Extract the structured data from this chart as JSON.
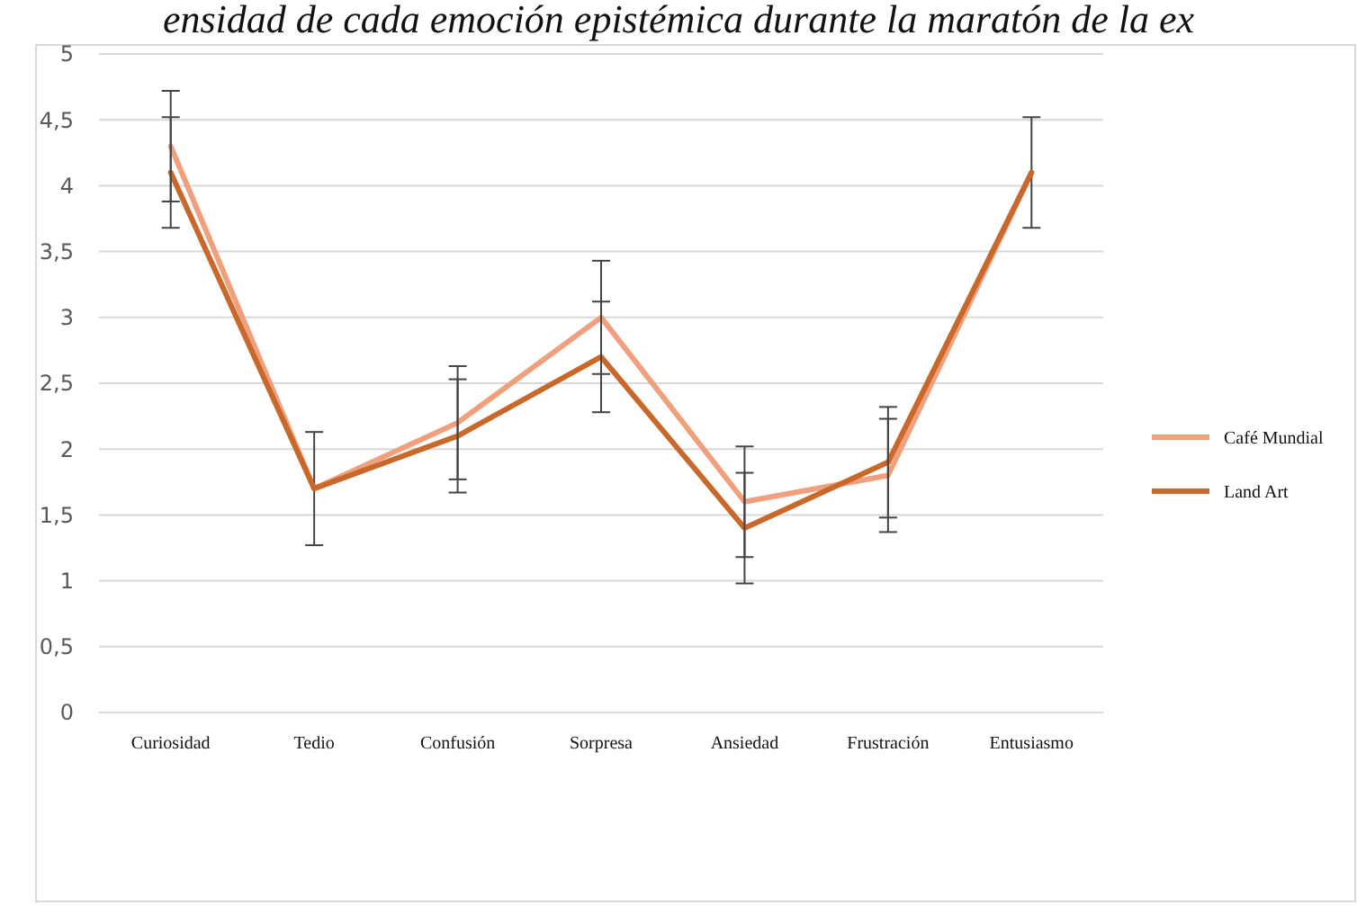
{
  "chart_data": {
    "type": "line",
    "title": "ensidad de cada emoción epistémica durante la maratón de la ex",
    "categories": [
      "Curiosidad",
      "Tedio",
      "Confusión",
      "Sorpresa",
      "Ansiedad",
      "Frustración",
      "Entusiasmo"
    ],
    "series": [
      {
        "name": "Café Mundial",
        "color": "#f0a07c",
        "values": [
          4.3,
          1.7,
          2.2,
          3.0,
          1.6,
          1.8,
          4.1
        ],
        "errors": [
          0.42,
          0.43,
          0.43,
          0.43,
          0.42,
          0.43,
          0.42
        ]
      },
      {
        "name": "Land Art",
        "color": "#c8682a",
        "values": [
          4.1,
          1.7,
          2.1,
          2.7,
          1.4,
          1.9,
          4.1
        ],
        "errors": [
          0.42,
          null,
          0.43,
          0.42,
          0.42,
          0.42,
          null
        ]
      }
    ],
    "ylim": [
      0,
      5
    ],
    "yticks": [
      0,
      {
        "value": 0.5,
        "label": "0,5"
      },
      1,
      {
        "value": 1.5,
        "label": "1,5"
      },
      2,
      {
        "value": 2.5,
        "label": "2,5"
      },
      3,
      {
        "value": 3.5,
        "label": "3,5"
      },
      4,
      {
        "value": 4.5,
        "label": "4,5"
      },
      5
    ],
    "grid": true,
    "legend": "right",
    "marker": "none",
    "line_style": "solid"
  }
}
